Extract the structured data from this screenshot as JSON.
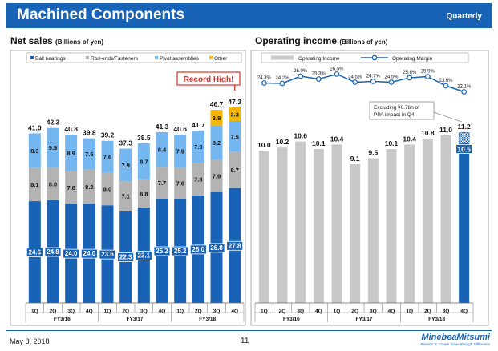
{
  "header": {
    "title": "Machined Components",
    "period": "Quarterly"
  },
  "footer": {
    "date": "May 8, 2018",
    "page": "11",
    "logo": "MinebeaMitsumi",
    "tagline": "Passion to Create Value through Difference"
  },
  "net_sales_panel": {
    "title": "Net sales",
    "unit": "(Billions of yen)",
    "callout": "Record High!"
  },
  "op_income_panel": {
    "title": "Operating income",
    "unit": "(Billions of yen)",
    "note_line1": "Excluding ¥0.7bn of",
    "note_line2": "PPA impact in Q4"
  },
  "colors": {
    "ball": "#1863b5",
    "rod": "#b3b3b3",
    "pivot": "#74b7f0",
    "other": "#f2b705",
    "income": "#c8c8c8",
    "margin": "#1863b5",
    "highlight": "#1863b5"
  },
  "chart_data": [
    {
      "type": "bar",
      "stacked": true,
      "title": "Net sales",
      "ylabel": "(Billions of yen)",
      "quarters": [
        "1Q",
        "2Q",
        "3Q",
        "4Q",
        "1Q",
        "2Q",
        "3Q",
        "4Q",
        "1Q",
        "2Q",
        "3Q",
        "4Q"
      ],
      "groups": [
        "FY3/16",
        "FY3/17",
        "FY3/18"
      ],
      "ylim": [
        0,
        50
      ],
      "legend_position": "top",
      "series": [
        {
          "name": "Ball bearings",
          "values": [
            24.6,
            24.8,
            24.0,
            24.0,
            23.6,
            22.3,
            23.1,
            25.2,
            25.2,
            26.0,
            26.8,
            27.8
          ]
        },
        {
          "name": "Rod-ends/Fasteners",
          "values": [
            8.1,
            8.0,
            7.8,
            8.2,
            8.0,
            7.1,
            6.8,
            7.7,
            7.6,
            7.8,
            7.9,
            8.7
          ]
        },
        {
          "name": "Pivot assemblies",
          "values": [
            8.3,
            9.5,
            8.9,
            7.6,
            7.6,
            7.9,
            8.7,
            8.4,
            7.9,
            7.9,
            8.2,
            7.5
          ]
        },
        {
          "name": "Other",
          "values": [
            null,
            null,
            null,
            null,
            null,
            null,
            null,
            null,
            null,
            null,
            3.8,
            3.3
          ]
        }
      ],
      "totals": [
        41.0,
        42.3,
        40.8,
        39.8,
        39.2,
        37.3,
        38.5,
        41.3,
        40.6,
        41.7,
        46.7,
        47.3
      ]
    },
    {
      "type": "bar+line",
      "title": "Operating income",
      "ylabel": "(Billions of yen)",
      "quarters": [
        "1Q",
        "2Q",
        "3Q",
        "4Q",
        "1Q",
        "2Q",
        "3Q",
        "4Q",
        "1Q",
        "2Q",
        "3Q",
        "4Q"
      ],
      "groups": [
        "FY3/16",
        "FY3/17",
        "FY3/18"
      ],
      "ylim": [
        0,
        12
      ],
      "legend_position": "top",
      "series": [
        {
          "name": "Operating Income",
          "kind": "bar",
          "values": [
            10.0,
            10.2,
            10.6,
            10.1,
            10.4,
            9.1,
            9.5,
            10.1,
            10.4,
            10.8,
            11.0,
            10.5
          ]
        },
        {
          "name": "Operating Margin",
          "kind": "line",
          "unit": "%",
          "values": [
            24.3,
            24.2,
            26.0,
            25.3,
            26.5,
            24.5,
            24.7,
            24.5,
            25.6,
            25.9,
            23.6,
            22.1
          ],
          "labels": [
            "24.3%",
            "24.2%",
            "26.0%",
            "25.3%",
            "26.5%",
            "24.5%",
            "24.7%",
            "24.5%",
            "25.6%",
            "25.9%",
            "23.6%",
            "22.1%"
          ]
        }
      ],
      "ppa_adjustment": {
        "quarter_index": 11,
        "value": 0.7,
        "adjusted_total": 11.2
      }
    }
  ]
}
